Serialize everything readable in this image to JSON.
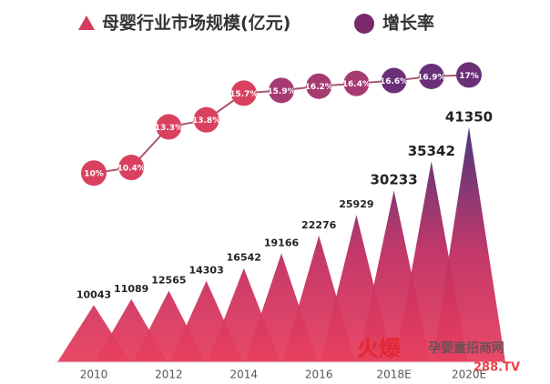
{
  "chart_data": {
    "type": "bar",
    "categories": [
      "2010",
      null,
      "2012",
      null,
      "2014",
      null,
      "2016",
      null,
      "2018E",
      null,
      "2020E"
    ],
    "series": [
      {
        "name": "母婴行业市场规模(亿元)",
        "type": "bar",
        "color": "#e8405e",
        "values": [
          10043,
          11089,
          12565,
          14303,
          16542,
          19166,
          22276,
          25929,
          30233,
          35342,
          41350
        ]
      },
      {
        "name": "增长率",
        "type": "line",
        "axis": "y2",
        "color": "#d9415f",
        "values": [
          10,
          10.4,
          13.3,
          13.8,
          15.7,
          15.9,
          16.2,
          16.4,
          16.6,
          16.9,
          17
        ],
        "value_labels": [
          "10%",
          "10.4%",
          "13.3%",
          "13.8%",
          "15.7%",
          "15.9%",
          "16.2%",
          "16.4%",
          "16.6%",
          "16.9%",
          "17%"
        ]
      }
    ],
    "ylim": [
      0,
      45000
    ],
    "y2lim": [
      8,
      18
    ],
    "annotations": [
      "火爆",
      "孕婴童招商网",
      "288.TV"
    ]
  }
}
